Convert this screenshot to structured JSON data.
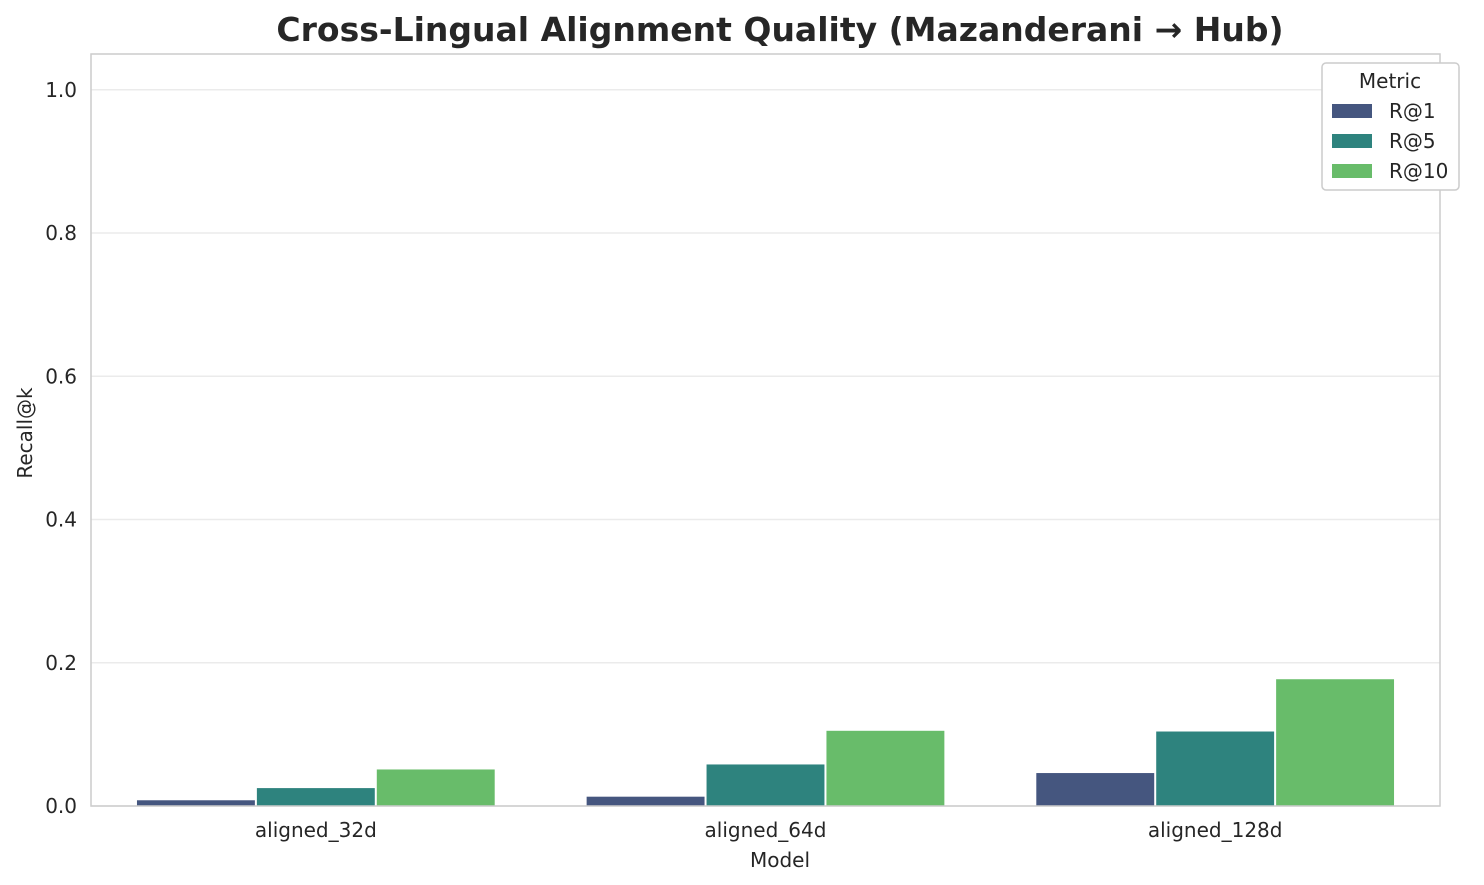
{
  "chart_data": {
    "type": "bar",
    "title": "Cross-Lingual Alignment Quality (Mazanderani → Hub)",
    "xlabel": "Model",
    "ylabel": "Recall@k",
    "categories": [
      "aligned_32d",
      "aligned_64d",
      "aligned_128d"
    ],
    "series": [
      {
        "name": "R@1",
        "color": "#45567f",
        "values": [
          0.008,
          0.013,
          0.046
        ]
      },
      {
        "name": "R@5",
        "color": "#2e837e",
        "values": [
          0.025,
          0.058,
          0.104
        ]
      },
      {
        "name": "R@10",
        "color": "#68bc6a",
        "values": [
          0.051,
          0.105,
          0.177
        ]
      }
    ],
    "ylim": [
      0,
      1.05
    ],
    "yticks": [
      "0.0",
      "0.2",
      "0.4",
      "0.6",
      "0.8",
      "1.0"
    ],
    "legend": {
      "title": "Metric",
      "position": "top-right"
    },
    "grid": "horizontal"
  }
}
